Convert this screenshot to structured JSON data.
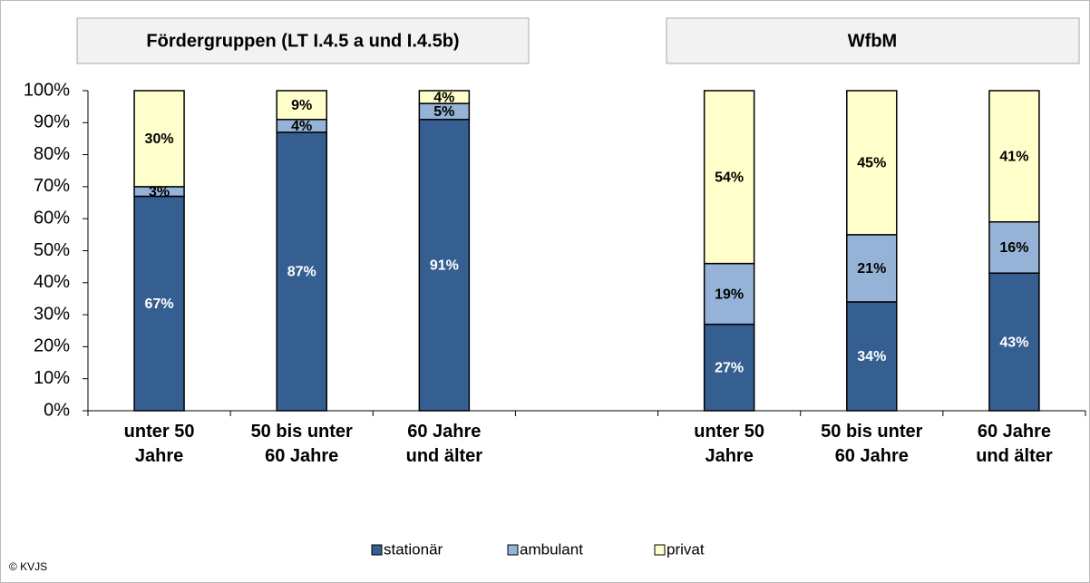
{
  "chart_data": {
    "type": "stacked_bar",
    "annotations": [
      "Fördergruppen (LT I.4.5 a und I.4.5b)",
      "WfbM"
    ],
    "source": "© KVJS",
    "categories": [
      "unter 50 Jahre",
      "50 bis unter 60 Jahre",
      "60 Jahre und älter",
      null,
      "unter 50 Jahre",
      "50 bis unter 60 Jahre",
      "60 Jahre und älter"
    ],
    "series": [
      {
        "name": "stationär",
        "color": "#355f91",
        "values": [
          67,
          87,
          91,
          null,
          27,
          34,
          43
        ],
        "value_labels": [
          "67%",
          "87%",
          "91%",
          null,
          "27%",
          "34%",
          "43%"
        ]
      },
      {
        "name": "ambulant",
        "color": "#95b3d7",
        "values": [
          3,
          4,
          5,
          null,
          19,
          21,
          16
        ],
        "value_labels": [
          "3%",
          "4%",
          "5%",
          null,
          "19%",
          "21%",
          "16%"
        ]
      },
      {
        "name": "privat",
        "color": "#ffffcc",
        "values": [
          30,
          9,
          4,
          null,
          54,
          45,
          41
        ],
        "value_labels": [
          "30%",
          "9%",
          "4%",
          null,
          "54%",
          "45%",
          "41%"
        ]
      }
    ],
    "ylim": [
      0,
      100
    ],
    "yticks": [
      {
        "value": 0,
        "label": "0%"
      },
      {
        "value": 10,
        "label": "10%"
      },
      {
        "value": 20,
        "label": "20%"
      },
      {
        "value": 30,
        "label": "30%"
      },
      {
        "value": 40,
        "label": "40%"
      },
      {
        "value": 50,
        "label": "50%"
      },
      {
        "value": 60,
        "label": "60%"
      },
      {
        "value": 70,
        "label": "70%"
      },
      {
        "value": 80,
        "label": "80%"
      },
      {
        "value": 90,
        "label": "90%"
      },
      {
        "value": 100,
        "label": "100%"
      }
    ],
    "legend": "bottom"
  }
}
